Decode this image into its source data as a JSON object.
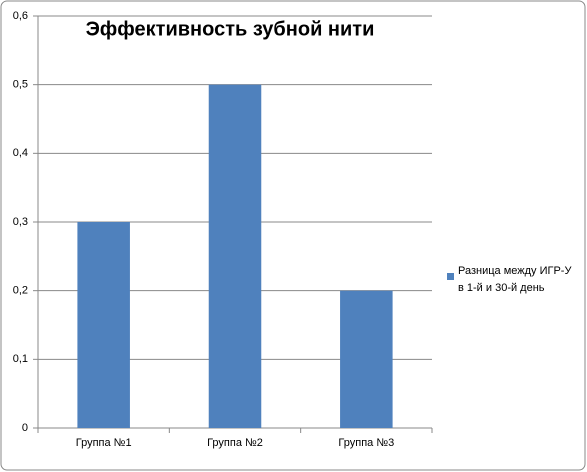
{
  "chart_data": {
    "type": "bar",
    "title": "Эффективность зубной нити",
    "categories": [
      "Группа №1",
      "Группа №2",
      "Группа №3"
    ],
    "series": [
      {
        "name": "Разница между ИГР-У в 1-й и 30-й день",
        "color": "#4f81bd",
        "values": [
          0.3,
          0.5,
          0.2
        ]
      }
    ],
    "ylim": [
      0,
      0.6
    ],
    "yticks": [
      0,
      {
        "value": 0.1,
        "label": "0,1"
      },
      {
        "value": 0.2,
        "label": "0,2"
      },
      {
        "value": 0.3,
        "label": "0,3"
      },
      {
        "value": 0.4,
        "label": "0,4"
      },
      {
        "value": 0.5,
        "label": "0,5"
      },
      {
        "value": 0.6,
        "label": "0,6"
      }
    ],
    "grid": true,
    "legend": "right"
  }
}
